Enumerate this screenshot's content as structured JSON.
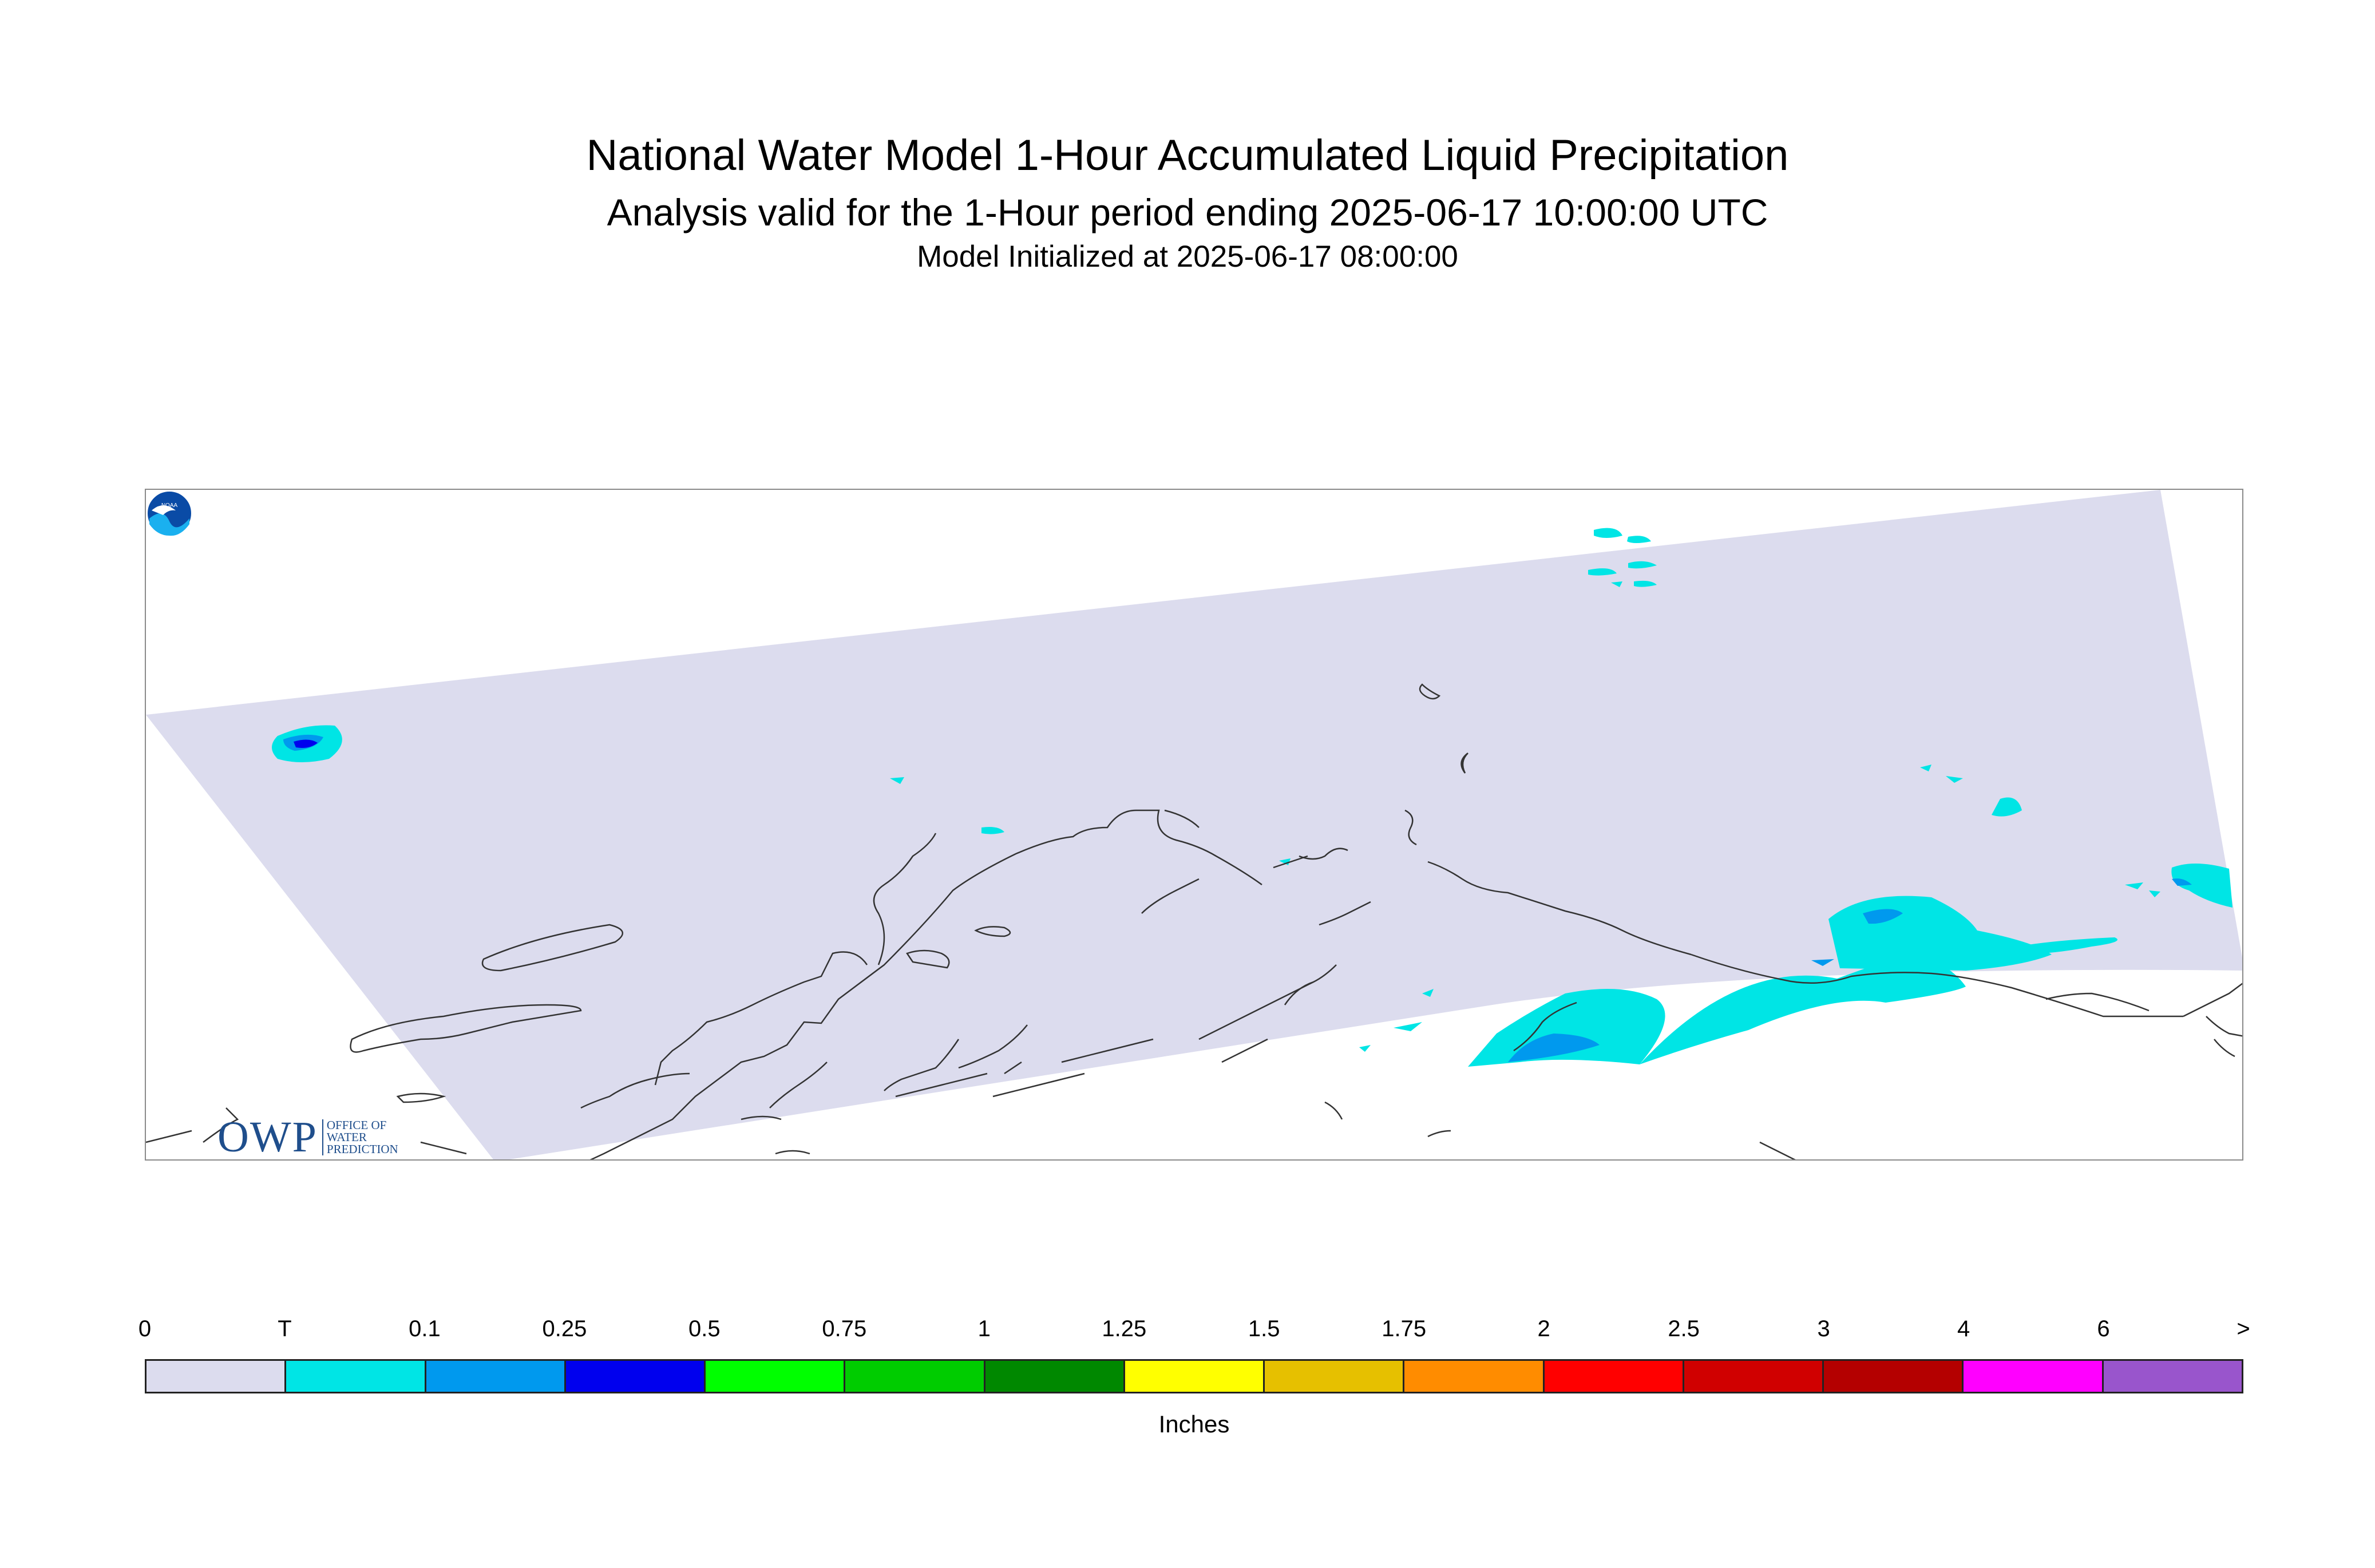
{
  "header": {
    "title": "National Water Model 1-Hour Accumulated Liquid Precipitation",
    "subtitle": "Analysis valid for the 1-Hour period ending 2025-06-17 10:00:00 UTC",
    "init": "Model Initialized at 2025-06-17 08:00:00"
  },
  "map": {
    "region": "Alaska",
    "domain_color": "#dcdcee",
    "coastline_color": "#333333"
  },
  "logos": {
    "owp_big": "OWP",
    "owp_line1": "OFFICE OF",
    "owp_line2": "WATER",
    "owp_line3": "PREDICTION",
    "noaa": "NOAA"
  },
  "legend": {
    "units": "Inches",
    "labels": [
      "0",
      "T",
      "0.1",
      "0.25",
      "0.5",
      "0.75",
      "1",
      "1.25",
      "1.5",
      "1.75",
      "2",
      "2.5",
      "3",
      "4",
      "6",
      ">"
    ],
    "colors": [
      "#dcdcee",
      "#00e5e5",
      "#0099ee",
      "#0000ee",
      "#00ff00",
      "#00cc00",
      "#008800",
      "#ffff00",
      "#e6c000",
      "#ff8c00",
      "#ff0000",
      "#d00000",
      "#b40000",
      "#ff00ff",
      "#9955cc"
    ]
  }
}
